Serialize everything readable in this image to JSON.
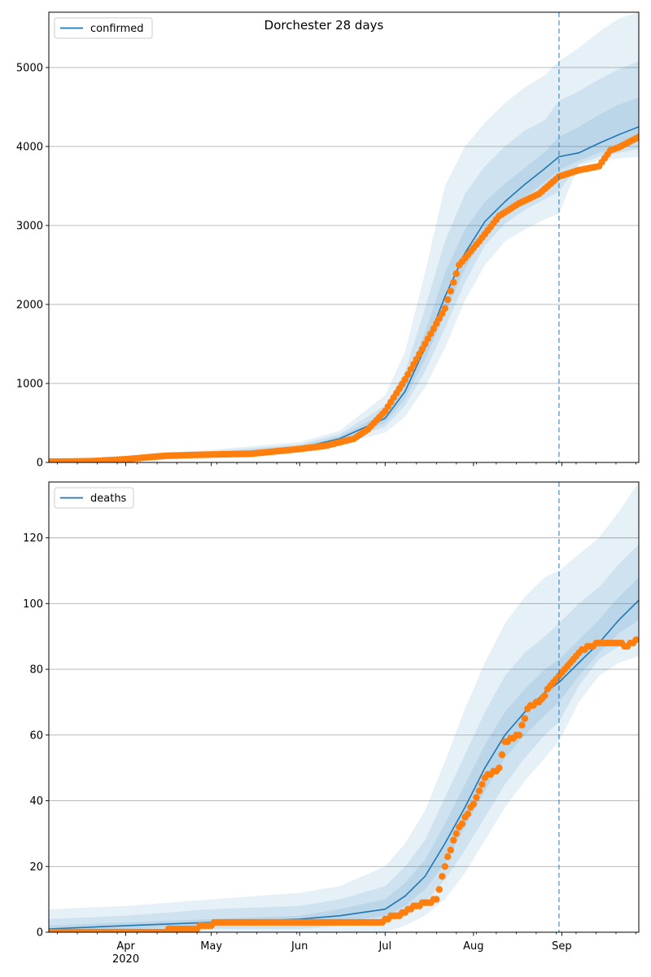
{
  "figure_title": "Dorchester 28 days",
  "colors": {
    "model": "#1f77b4",
    "observed": "#ff7f0e",
    "band": "#1f77b4",
    "grid": "#b0b0b0",
    "forecast_line": "#1f77b4"
  },
  "x_axis": {
    "range": [
      "2020-03-05",
      "2020-09-28"
    ],
    "month_ticks": [
      {
        "date": "2020-04-01",
        "label": "Apr",
        "sublabel": "2020"
      },
      {
        "date": "2020-05-01",
        "label": "May",
        "sublabel": ""
      },
      {
        "date": "2020-06-01",
        "label": "Jun",
        "sublabel": ""
      },
      {
        "date": "2020-07-01",
        "label": "Jul",
        "sublabel": ""
      },
      {
        "date": "2020-08-01",
        "label": "Aug",
        "sublabel": ""
      },
      {
        "date": "2020-09-01",
        "label": "Sep",
        "sublabel": ""
      }
    ],
    "minor_ticks": [
      "2020-03-08",
      "2020-03-15",
      "2020-03-22",
      "2020-03-29",
      "2020-04-05",
      "2020-04-12",
      "2020-04-19",
      "2020-04-26",
      "2020-05-03",
      "2020-05-10",
      "2020-05-17",
      "2020-05-24",
      "2020-05-31",
      "2020-06-07",
      "2020-06-14",
      "2020-06-21",
      "2020-06-28",
      "2020-07-05",
      "2020-07-12",
      "2020-07-19",
      "2020-07-26",
      "2020-08-02",
      "2020-08-09",
      "2020-08-16",
      "2020-08-23",
      "2020-08-30",
      "2020-09-06",
      "2020-09-13",
      "2020-09-20",
      "2020-09-27"
    ],
    "forecast_start": "2020-08-31"
  },
  "chart_data": [
    {
      "type": "line",
      "legend": "confirmed",
      "legend_position": "top-left",
      "grid": "horizontal",
      "ylim": [
        0,
        5700
      ],
      "yticks": [
        0,
        1000,
        2000,
        3000,
        4000,
        5000
      ],
      "model": {
        "x": [
          "2020-03-05",
          "2020-04-01",
          "2020-05-01",
          "2020-06-01",
          "2020-06-15",
          "2020-07-01",
          "2020-07-08",
          "2020-07-15",
          "2020-07-22",
          "2020-07-29",
          "2020-08-05",
          "2020-08-12",
          "2020-08-19",
          "2020-08-26",
          "2020-08-31",
          "2020-09-07",
          "2020-09-14",
          "2020-09-21",
          "2020-09-28"
        ],
        "median": [
          8,
          30,
          100,
          180,
          300,
          560,
          900,
          1450,
          2100,
          2650,
          3050,
          3300,
          3520,
          3720,
          3870,
          3920,
          4040,
          4150,
          4250
        ],
        "bands": [
          {
            "low": [
              0,
              5,
              70,
              130,
              230,
              380,
              580,
              950,
              1450,
              2050,
              2500,
              2800,
              2950,
              3080,
              3150,
              3760,
              3820,
              3850,
              3870
            ],
            "high": [
              40,
              80,
              160,
              260,
              400,
              850,
              1400,
              2400,
              3500,
              4000,
              4300,
              4550,
              4750,
              4900,
              5080,
              5250,
              5450,
              5620,
              5700
            ]
          },
          {
            "low": [
              0,
              10,
              80,
              150,
              260,
              450,
              720,
              1150,
              1700,
              2280,
              2750,
              3020,
              3200,
              3330,
              3430,
              3780,
              3870,
              3920,
              3970
            ],
            "high": [
              25,
              60,
              140,
              230,
              360,
              720,
              1150,
              1950,
              2800,
              3400,
              3750,
              4000,
              4200,
              4330,
              4580,
              4700,
              4850,
              4980,
              5080
            ]
          },
          {
            "low": [
              2,
              15,
              90,
              160,
              280,
              500,
              810,
              1300,
              1880,
              2450,
              2880,
              3150,
              3360,
              3550,
              3700,
              3820,
              3920,
              4000,
              4080
            ],
            "high": [
              15,
              45,
              120,
              210,
              330,
              630,
              1000,
              1650,
              2400,
              2950,
              3300,
              3530,
              3730,
              3930,
              4120,
              4250,
              4400,
              4530,
              4620
            ]
          }
        ]
      },
      "observed": {
        "x": [
          "2020-03-05",
          "2020-03-20",
          "2020-04-01",
          "2020-04-15",
          "2020-05-01",
          "2020-05-15",
          "2020-06-01",
          "2020-06-10",
          "2020-06-20",
          "2020-06-25",
          "2020-07-01",
          "2020-07-08",
          "2020-07-15",
          "2020-07-22",
          "2020-07-27",
          "2020-08-03",
          "2020-08-10",
          "2020-08-17",
          "2020-08-24",
          "2020-08-31",
          "2020-09-07",
          "2020-09-14",
          "2020-09-18",
          "2020-09-21",
          "2020-09-28"
        ],
        "y": [
          10,
          15,
          40,
          85,
          100,
          110,
          170,
          210,
          300,
          420,
          650,
          1050,
          1500,
          1950,
          2500,
          2800,
          3120,
          3280,
          3400,
          3620,
          3700,
          3750,
          3950,
          3990,
          4120
        ]
      }
    },
    {
      "type": "line",
      "legend": "deaths",
      "legend_position": "top-left",
      "grid": "horizontal",
      "ylim": [
        0,
        137
      ],
      "yticks": [
        0,
        20,
        40,
        60,
        80,
        100,
        120
      ],
      "model": {
        "x": [
          "2020-03-05",
          "2020-04-01",
          "2020-05-01",
          "2020-06-01",
          "2020-06-15",
          "2020-07-01",
          "2020-07-08",
          "2020-07-15",
          "2020-07-22",
          "2020-07-29",
          "2020-08-05",
          "2020-08-12",
          "2020-08-19",
          "2020-08-26",
          "2020-08-31",
          "2020-09-07",
          "2020-09-14",
          "2020-09-21",
          "2020-09-28"
        ],
        "median": [
          1,
          2,
          3,
          4,
          5,
          7,
          11,
          17,
          27,
          38,
          50,
          60,
          67,
          73,
          76,
          82,
          88,
          95,
          101
        ],
        "bands": [
          {
            "low": [
              0,
              0,
              0,
              0,
              0,
              0,
              2,
              5,
              10,
              18,
              28,
              38,
              46,
              53,
              58,
              70,
              78,
              82,
              84
            ],
            "high": [
              7,
              8,
              10,
              12,
              14,
              20,
              27,
              37,
              52,
              68,
              82,
              94,
              102,
              108,
              110,
              115,
              120,
              128,
              137
            ]
          },
          {
            "low": [
              0,
              0,
              1,
              1,
              2,
              3,
              5,
              9,
              16,
              25,
              35,
              45,
              53,
              60,
              64,
              75,
              83,
              87,
              89
            ],
            "high": [
              4,
              5,
              7,
              8,
              10,
              14,
              20,
              28,
              41,
              54,
              67,
              78,
              85,
              90,
              94,
              100,
              105,
              112,
              118
            ]
          },
          {
            "low": [
              0,
              1,
              2,
              2,
              3,
              5,
              8,
              13,
              21,
              32,
              43,
              53,
              60,
              66,
              70,
              78,
              85,
              91,
              95
            ],
            "high": [
              2,
              3,
              4,
              5,
              7,
              10,
              15,
              22,
              33,
              45,
              57,
              67,
              74,
              80,
              83,
              89,
              95,
              102,
              108
            ]
          }
        ]
      },
      "observed": {
        "x": [
          "2020-03-05",
          "2020-04-15",
          "2020-04-16",
          "2020-04-26",
          "2020-04-27",
          "2020-05-01",
          "2020-05-02",
          "2020-06-30",
          "2020-07-01",
          "2020-07-05",
          "2020-07-12",
          "2020-07-19",
          "2020-07-22",
          "2020-07-26",
          "2020-07-29",
          "2020-08-01",
          "2020-08-05",
          "2020-08-10",
          "2020-08-12",
          "2020-08-17",
          "2020-08-20",
          "2020-08-25",
          "2020-08-29",
          "2020-09-02",
          "2020-09-06",
          "2020-09-10",
          "2020-09-15",
          "2020-09-20",
          "2020-09-24",
          "2020-09-27"
        ],
        "y": [
          0,
          0,
          1,
          1,
          2,
          2,
          3,
          3,
          4,
          5,
          8,
          10,
          20,
          30,
          35,
          39,
          47,
          50,
          58,
          60,
          68,
          71,
          76,
          80,
          84,
          87,
          88,
          88,
          87,
          89
        ]
      }
    }
  ]
}
